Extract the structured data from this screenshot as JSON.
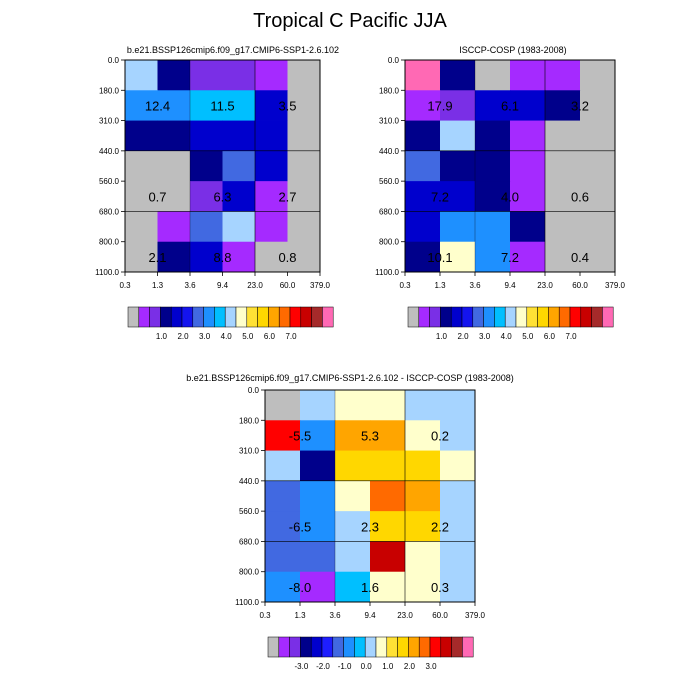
{
  "title": "Tropical C Pacific JJA",
  "palettes": {
    "abs": [
      "#bebebe",
      "#a52aff",
      "#7a2fe6",
      "#00008b",
      "#0000cd",
      "#1414ee",
      "#4169e1",
      "#1e90ff",
      "#00bfff",
      "#a6d4ff",
      "#ffffcc",
      "#ffe135",
      "#ffd700",
      "#ffa500",
      "#ff6a00",
      "#ff0000",
      "#c80000",
      "#a52a2a",
      "#ff69b4"
    ],
    "diff": [
      "#bebebe",
      "#a52aff",
      "#7a2fe6",
      "#00008b",
      "#0000cd",
      "#1e1eff",
      "#4169e1",
      "#1e90ff",
      "#00bfff",
      "#a6d4ff",
      "#ffffcc",
      "#ffe135",
      "#ffd700",
      "#ffa500",
      "#ff6a00",
      "#ff0000",
      "#c80000",
      "#a52a2a",
      "#ff69b4"
    ]
  },
  "chart_data": [
    {
      "type": "heatmap",
      "title": "b.e21.BSSP126cmip6.f09_g17.CMIP6-SSP1-2.6.102",
      "x_ticks": [
        "0.3",
        "1.3",
        "3.6",
        "9.4",
        "23.0",
        "60.0",
        "379.0"
      ],
      "y_ticks": [
        "0.0",
        "180.0",
        "310.0",
        "440.0",
        "560.0",
        "680.0",
        "800.0",
        "1100.0"
      ],
      "palette": "abs",
      "colorbar_labels": [
        "1.0",
        "2.0",
        "3.0",
        "4.0",
        "5.0",
        "6.0",
        "7.0"
      ],
      "cell_colors": [
        [
          9,
          3,
          2,
          2,
          1,
          0
        ],
        [
          7,
          7,
          8,
          8,
          4,
          0
        ],
        [
          3,
          3,
          4,
          4,
          4,
          0
        ],
        [
          0,
          0,
          3,
          6,
          4,
          0
        ],
        [
          0,
          0,
          2,
          4,
          1,
          0
        ],
        [
          0,
          1,
          6,
          9,
          1,
          0
        ],
        [
          0,
          3,
          4,
          1,
          0,
          0
        ]
      ],
      "cluster_values": [
        {
          "value": "12.4",
          "col": 0,
          "row": 1
        },
        {
          "value": "11.5",
          "col": 2,
          "row": 1
        },
        {
          "value": "3.5",
          "col": 4,
          "row": 1
        },
        {
          "value": "0.7",
          "col": 0,
          "row": 4
        },
        {
          "value": "6.3",
          "col": 2,
          "row": 4
        },
        {
          "value": "2.7",
          "col": 4,
          "row": 4
        },
        {
          "value": "2.1",
          "col": 0,
          "row": 6
        },
        {
          "value": "8.8",
          "col": 2,
          "row": 6
        },
        {
          "value": "0.8",
          "col": 4,
          "row": 6
        }
      ]
    },
    {
      "type": "heatmap",
      "title": "ISCCP-COSP (1983-2008)",
      "x_ticks": [
        "0.3",
        "1.3",
        "3.6",
        "9.4",
        "23.0",
        "60.0",
        "379.0"
      ],
      "y_ticks": [
        "0.0",
        "180.0",
        "310.0",
        "440.0",
        "560.0",
        "680.0",
        "800.0",
        "1100.0"
      ],
      "palette": "abs",
      "colorbar_labels": [
        "1.0",
        "2.0",
        "3.0",
        "4.0",
        "5.0",
        "6.0",
        "7.0"
      ],
      "cell_colors": [
        [
          18,
          3,
          0,
          1,
          1,
          0
        ],
        [
          1,
          2,
          4,
          4,
          3,
          0
        ],
        [
          3,
          9,
          3,
          1,
          0,
          0
        ],
        [
          6,
          3,
          3,
          1,
          0,
          0
        ],
        [
          4,
          4,
          3,
          1,
          0,
          0
        ],
        [
          4,
          7,
          7,
          3,
          0,
          0
        ],
        [
          3,
          10,
          7,
          1,
          0,
          0
        ]
      ],
      "cluster_values": [
        {
          "value": "17.9",
          "col": 0,
          "row": 1
        },
        {
          "value": "6.1",
          "col": 2,
          "row": 1
        },
        {
          "value": "3.2",
          "col": 4,
          "row": 1
        },
        {
          "value": "7.2",
          "col": 0,
          "row": 4
        },
        {
          "value": "4.0",
          "col": 2,
          "row": 4
        },
        {
          "value": "0.6",
          "col": 4,
          "row": 4
        },
        {
          "value": "10.1",
          "col": 0,
          "row": 6
        },
        {
          "value": "7.2",
          "col": 2,
          "row": 6
        },
        {
          "value": "0.4",
          "col": 4,
          "row": 6
        }
      ]
    },
    {
      "type": "heatmap",
      "title": "b.e21.BSSP126cmip6.f09_g17.CMIP6-SSP1-2.6.102 - ISCCP-COSP (1983-2008)",
      "x_ticks": [
        "0.3",
        "1.3",
        "3.6",
        "9.4",
        "23.0",
        "60.0",
        "379.0"
      ],
      "y_ticks": [
        "0.0",
        "180.0",
        "310.0",
        "440.0",
        "560.0",
        "680.0",
        "800.0",
        "1100.0"
      ],
      "palette": "diff",
      "colorbar_labels": [
        "-3.0",
        "-2.0",
        "-1.0",
        "0.0",
        "1.0",
        "2.0",
        "3.0"
      ],
      "cell_colors": [
        [
          0,
          9,
          10,
          10,
          9,
          9
        ],
        [
          15,
          7,
          13,
          13,
          10,
          9
        ],
        [
          9,
          3,
          12,
          12,
          12,
          10
        ],
        [
          6,
          7,
          10,
          14,
          13,
          9
        ],
        [
          6,
          7,
          9,
          12,
          12,
          9
        ],
        [
          6,
          6,
          9,
          16,
          10,
          9
        ],
        [
          7,
          1,
          8,
          10,
          10,
          9
        ]
      ],
      "cluster_values": [
        {
          "value": "-5.5",
          "col": 0,
          "row": 1
        },
        {
          "value": "5.3",
          "col": 2,
          "row": 1
        },
        {
          "value": "0.2",
          "col": 4,
          "row": 1
        },
        {
          "value": "-6.5",
          "col": 0,
          "row": 4
        },
        {
          "value": "2.3",
          "col": 2,
          "row": 4
        },
        {
          "value": "2.2",
          "col": 4,
          "row": 4
        },
        {
          "value": "-8.0",
          "col": 0,
          "row": 6
        },
        {
          "value": "1.6",
          "col": 2,
          "row": 6
        },
        {
          "value": "0.3",
          "col": 4,
          "row": 6
        }
      ]
    }
  ]
}
